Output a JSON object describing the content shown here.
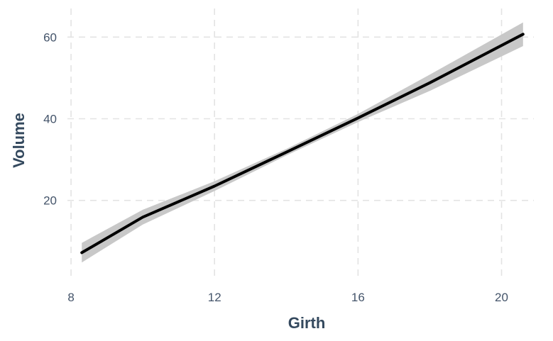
{
  "chart_data": {
    "type": "line",
    "xlabel": "Girth",
    "ylabel": "Volume",
    "xlim": [
      7.9,
      20.9
    ],
    "ylim": [
      0.5,
      67
    ],
    "x_ticks": [
      8,
      12,
      16,
      20
    ],
    "x_tick_labels": [
      "8",
      "12",
      "16",
      "20"
    ],
    "y_ticks": [
      20,
      40,
      60
    ],
    "y_tick_labels": [
      "20",
      "40",
      "60"
    ],
    "grid": true,
    "series": [
      {
        "x": [
          8.3,
          10,
          12,
          14,
          16,
          18,
          20.6
        ],
        "y": [
          7.2,
          15.9,
          23.5,
          31.8,
          40.2,
          48.8,
          60.7
        ],
        "lower": [
          4.8,
          14.1,
          22.3,
          31.0,
          39.2,
          46.8,
          57.8
        ],
        "upper": [
          9.6,
          17.7,
          24.7,
          32.6,
          41.2,
          50.8,
          63.6
        ],
        "color": "#000000",
        "band_color": "#c8c8c8"
      }
    ]
  }
}
